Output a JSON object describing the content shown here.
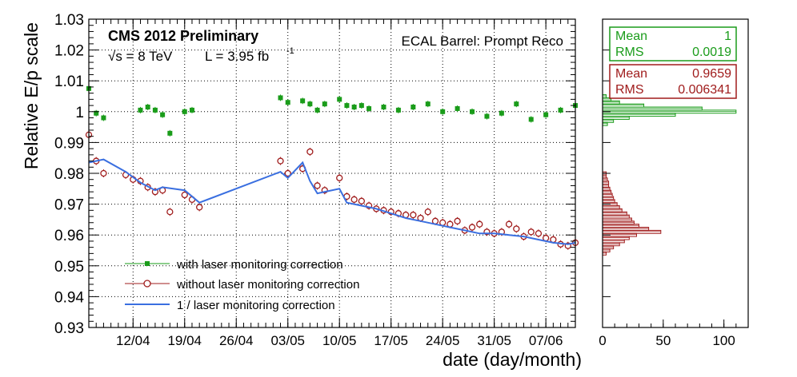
{
  "chart_data": {
    "type": "scatter",
    "title": "CMS 2012 Preliminary",
    "energy_label": "√s = 8 TeV",
    "lumi_label": "L = 3.95 fb",
    "lumi_exponent": "-1",
    "subtitle": "ECAL Barrel: Prompt Reco",
    "xlabel": "date (day/month)",
    "ylabel": "Relative E/p scale",
    "x_range": [
      "2012-04-06",
      "2012-06-11"
    ],
    "ylim": [
      0.93,
      1.03
    ],
    "yticks": [
      "0.93",
      "0.94",
      "0.95",
      "0.96",
      "0.97",
      "0.98",
      "0.99",
      "1",
      "1.01",
      "1.02",
      "1.03"
    ],
    "xticks": [
      {
        "date": "2012-04-12",
        "label": "12/04"
      },
      {
        "date": "2012-04-19",
        "label": "19/04"
      },
      {
        "date": "2012-04-26",
        "label": "26/04"
      },
      {
        "date": "2012-05-03",
        "label": "03/05"
      },
      {
        "date": "2012-05-10",
        "label": "10/05"
      },
      {
        "date": "2012-05-17",
        "label": "17/05"
      },
      {
        "date": "2012-05-24",
        "label": "24/05"
      },
      {
        "date": "2012-05-31",
        "label": "31/05"
      },
      {
        "date": "2012-06-07",
        "label": "07/06"
      }
    ],
    "grid": true,
    "legend_position": "bottom-left",
    "series": [
      {
        "name": "with laser monitoring correction",
        "color": "#1a9c1a",
        "marker": "filled-square",
        "points": [
          [
            "2012-04-06",
            1.0075
          ],
          [
            "2012-04-07",
            0.9995
          ],
          [
            "2012-04-08",
            0.998
          ],
          [
            "2012-04-13",
            1.0005
          ],
          [
            "2012-04-14",
            1.0015
          ],
          [
            "2012-04-15",
            1.0005
          ],
          [
            "2012-04-16",
            0.999
          ],
          [
            "2012-04-17",
            0.993
          ],
          [
            "2012-04-19",
            1.0
          ],
          [
            "2012-04-20",
            1.0005
          ],
          [
            "2012-05-02",
            1.0045
          ],
          [
            "2012-05-03",
            1.003
          ],
          [
            "2012-05-05",
            1.0035
          ],
          [
            "2012-05-06",
            1.0025
          ],
          [
            "2012-05-07",
            1.0005
          ],
          [
            "2012-05-08",
            1.0025
          ],
          [
            "2012-05-10",
            1.004
          ],
          [
            "2012-05-11",
            1.002
          ],
          [
            "2012-05-12",
            1.0015
          ],
          [
            "2012-05-13",
            1.002
          ],
          [
            "2012-05-14",
            1.001
          ],
          [
            "2012-05-16",
            1.0015
          ],
          [
            "2012-05-18",
            1.0005
          ],
          [
            "2012-05-20",
            1.0015
          ],
          [
            "2012-05-22",
            1.0025
          ],
          [
            "2012-05-24",
            1.0
          ],
          [
            "2012-05-26",
            1.001
          ],
          [
            "2012-05-28",
            1.0
          ],
          [
            "2012-05-30",
            0.9985
          ],
          [
            "2012-06-01",
            0.9995
          ],
          [
            "2012-06-03",
            1.0025
          ],
          [
            "2012-06-05",
            0.9975
          ],
          [
            "2012-06-07",
            0.999
          ],
          [
            "2012-06-09",
            1.0005
          ],
          [
            "2012-06-11",
            1.002
          ]
        ]
      },
      {
        "name": "without laser monitoring correction",
        "color": "#a01c1c",
        "marker": "open-circle",
        "points": [
          [
            "2012-04-06",
            0.9925
          ],
          [
            "2012-04-07",
            0.984
          ],
          [
            "2012-04-08",
            0.98
          ],
          [
            "2012-04-11",
            0.9795
          ],
          [
            "2012-04-12",
            0.978
          ],
          [
            "2012-04-13",
            0.9775
          ],
          [
            "2012-04-14",
            0.9755
          ],
          [
            "2012-04-15",
            0.974
          ],
          [
            "2012-04-16",
            0.9745
          ],
          [
            "2012-04-17",
            0.9675
          ],
          [
            "2012-04-19",
            0.973
          ],
          [
            "2012-04-20",
            0.9715
          ],
          [
            "2012-04-21",
            0.969
          ],
          [
            "2012-05-02",
            0.984
          ],
          [
            "2012-05-03",
            0.98
          ],
          [
            "2012-05-05",
            0.9815
          ],
          [
            "2012-05-06",
            0.987
          ],
          [
            "2012-05-07",
            0.976
          ],
          [
            "2012-05-08",
            0.9745
          ],
          [
            "2012-05-10",
            0.9785
          ],
          [
            "2012-05-11",
            0.9725
          ],
          [
            "2012-05-12",
            0.9715
          ],
          [
            "2012-05-13",
            0.971
          ],
          [
            "2012-05-14",
            0.9695
          ],
          [
            "2012-05-15",
            0.9685
          ],
          [
            "2012-05-16",
            0.968
          ],
          [
            "2012-05-17",
            0.9675
          ],
          [
            "2012-05-18",
            0.967
          ],
          [
            "2012-05-19",
            0.9665
          ],
          [
            "2012-05-20",
            0.9665
          ],
          [
            "2012-05-21",
            0.9655
          ],
          [
            "2012-05-22",
            0.9675
          ],
          [
            "2012-05-23",
            0.9645
          ],
          [
            "2012-05-24",
            0.964
          ],
          [
            "2012-05-25",
            0.9635
          ],
          [
            "2012-05-26",
            0.9645
          ],
          [
            "2012-05-27",
            0.9615
          ],
          [
            "2012-05-28",
            0.9625
          ],
          [
            "2012-05-29",
            0.9635
          ],
          [
            "2012-05-30",
            0.961
          ],
          [
            "2012-05-31",
            0.9605
          ],
          [
            "2012-06-01",
            0.961
          ],
          [
            "2012-06-02",
            0.9635
          ],
          [
            "2012-06-03",
            0.962
          ],
          [
            "2012-06-04",
            0.9595
          ],
          [
            "2012-06-05",
            0.961
          ],
          [
            "2012-06-06",
            0.9605
          ],
          [
            "2012-06-07",
            0.959
          ],
          [
            "2012-06-08",
            0.9585
          ],
          [
            "2012-06-09",
            0.957
          ],
          [
            "2012-06-10",
            0.9565
          ],
          [
            "2012-06-11",
            0.9575
          ]
        ]
      },
      {
        "name": "1 / laser monitoring correction",
        "color": "#3a6fe0",
        "marker": "line",
        "points": [
          [
            "2012-04-06",
            0.9835
          ],
          [
            "2012-04-08",
            0.9845
          ],
          [
            "2012-04-11",
            0.9805
          ],
          [
            "2012-04-13",
            0.977
          ],
          [
            "2012-04-15",
            0.9745
          ],
          [
            "2012-04-16",
            0.9755
          ],
          [
            "2012-04-19",
            0.9745
          ],
          [
            "2012-04-21",
            0.9705
          ],
          [
            "2012-05-02",
            0.9805
          ],
          [
            "2012-05-03",
            0.9785
          ],
          [
            "2012-05-05",
            0.9835
          ],
          [
            "2012-05-06",
            0.9775
          ],
          [
            "2012-05-07",
            0.9735
          ],
          [
            "2012-05-10",
            0.975
          ],
          [
            "2012-05-11",
            0.9705
          ],
          [
            "2012-05-13",
            0.9695
          ],
          [
            "2012-05-15",
            0.9685
          ],
          [
            "2012-05-17",
            0.967
          ],
          [
            "2012-05-19",
            0.9655
          ],
          [
            "2012-05-21",
            0.9645
          ],
          [
            "2012-05-23",
            0.9635
          ],
          [
            "2012-05-25",
            0.9625
          ],
          [
            "2012-05-27",
            0.9615
          ],
          [
            "2012-05-29",
            0.9605
          ],
          [
            "2012-05-31",
            0.9605
          ],
          [
            "2012-06-02",
            0.96
          ],
          [
            "2012-06-04",
            0.9595
          ],
          [
            "2012-06-06",
            0.9585
          ],
          [
            "2012-06-08",
            0.9575
          ],
          [
            "2012-06-10",
            0.957
          ],
          [
            "2012-06-11",
            0.9575
          ]
        ]
      }
    ],
    "histogram": {
      "xticks": [
        "0",
        "50",
        "100"
      ],
      "xlim": [
        0,
        120
      ],
      "stats": [
        {
          "color": "#1a9c1a",
          "mean_label": "Mean",
          "mean": "1",
          "rms_label": "RMS",
          "rms": "0.0019"
        },
        {
          "color": "#a01c1c",
          "mean_label": "Mean",
          "mean": "0.9659",
          "rms_label": "RMS",
          "rms": "0.006341"
        }
      ],
      "series": [
        {
          "color": "#1a9c1a",
          "bins": [
            [
              0.996,
              4
            ],
            [
              0.997,
              9
            ],
            [
              0.998,
              22
            ],
            [
              0.999,
              60
            ],
            [
              1.0,
              110
            ],
            [
              1.001,
              82
            ],
            [
              1.002,
              34
            ],
            [
              1.003,
              14
            ],
            [
              1.004,
              7
            ],
            [
              1.005,
              3
            ]
          ]
        },
        {
          "color": "#a01c1c",
          "bins": [
            [
              0.954,
              3
            ],
            [
              0.955,
              6
            ],
            [
              0.956,
              9
            ],
            [
              0.957,
              14
            ],
            [
              0.958,
              18
            ],
            [
              0.959,
              22
            ],
            [
              0.96,
              28
            ],
            [
              0.961,
              48
            ],
            [
              0.962,
              38
            ],
            [
              0.963,
              30
            ],
            [
              0.964,
              26
            ],
            [
              0.965,
              24
            ],
            [
              0.966,
              22
            ],
            [
              0.967,
              20
            ],
            [
              0.968,
              16
            ],
            [
              0.969,
              14
            ],
            [
              0.97,
              12
            ],
            [
              0.971,
              10
            ],
            [
              0.972,
              9
            ],
            [
              0.973,
              8
            ],
            [
              0.974,
              7
            ],
            [
              0.975,
              6
            ],
            [
              0.976,
              5
            ],
            [
              0.977,
              5
            ],
            [
              0.978,
              4
            ],
            [
              0.979,
              3
            ],
            [
              0.98,
              3
            ]
          ]
        }
      ]
    }
  }
}
